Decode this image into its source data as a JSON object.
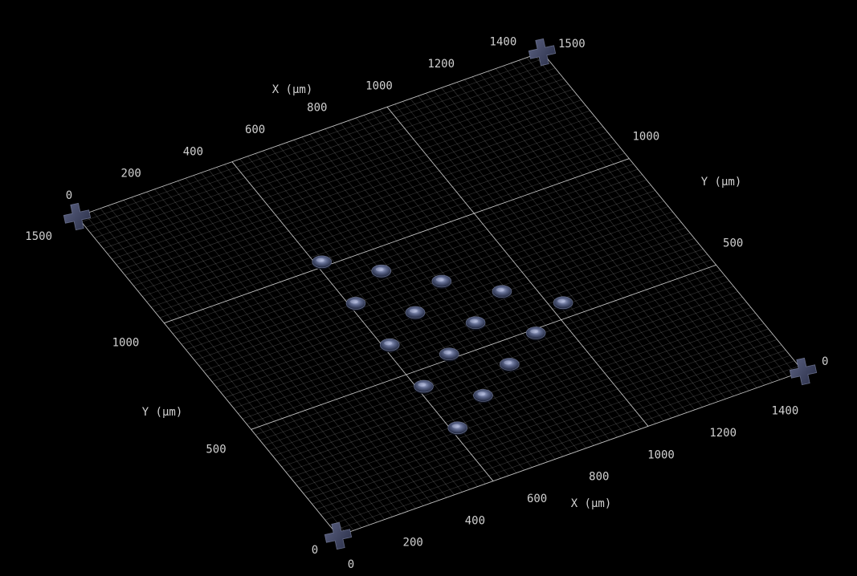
{
  "view": {
    "background": "#000000",
    "grid_color": "#ffffff",
    "feature_color": "#2c3450",
    "feature_highlight": "#9aa3c8"
  },
  "axes": {
    "x": {
      "title": "X (µm)",
      "range": [
        0,
        1500
      ],
      "front_ticks": [
        "0",
        "200",
        "400",
        "600",
        "800",
        "1000",
        "1200",
        "1400"
      ],
      "back_ticks": [
        "0",
        "200",
        "400",
        "600",
        "800",
        "1000",
        "1200",
        "1400",
        "1500"
      ]
    },
    "y": {
      "title": "Y (µm)",
      "range": [
        0,
        1500
      ],
      "left_ticks": [
        "0",
        "500",
        "1000",
        "1500"
      ],
      "right_ticks": [
        "0",
        "500",
        "1000"
      ]
    }
  },
  "chart_data": {
    "type": "scatter",
    "xlabel": "X (µm)",
    "ylabel": "Y (µm)",
    "xlim": [
      0,
      1500
    ],
    "ylim": [
      0,
      1500
    ],
    "grid": true,
    "series": [
      {
        "x": [
          520,
          520,
          520,
          520,
          520,
          650,
          650,
          650,
          650,
          780,
          780,
          780,
          910,
          910,
          1040
        ],
        "y": [
          240,
          435,
          630,
          825,
          1020,
          325,
          520,
          715,
          910,
          405,
          600,
          795,
          485,
          680,
          560
        ]
      }
    ],
    "fiducials": {
      "x": [
        0,
        1500,
        1500,
        0
      ],
      "y": [
        0,
        0,
        1500,
        1500
      ]
    }
  }
}
